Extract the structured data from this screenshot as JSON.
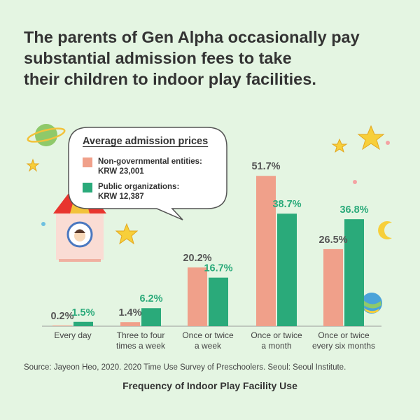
{
  "title_lines": [
    "The parents of Gen Alpha occasionally pay",
    "substantial admission fees to take",
    "their children to indoor play facilities."
  ],
  "legend": {
    "title": "Average admission prices",
    "items": [
      {
        "line1": "Non-governmental entities:",
        "line2": "KRW 23,001",
        "color": "#f0a08a"
      },
      {
        "line1": "Public organizations:",
        "line2": "KRW 12,387",
        "color": "#2aaa7a"
      }
    ]
  },
  "source": "Source: Jayeon Heo, 2020. 2020 Time Use Survey of Preschoolers. Seoul: Seoul Institute.",
  "caption": "Frequency of Indoor Play Facility Use",
  "chart_data": {
    "type": "bar",
    "categories": [
      [
        "Every day"
      ],
      [
        "Three to four",
        "times a week"
      ],
      [
        "Once or twice",
        "a week"
      ],
      [
        "Once or twice",
        "a month"
      ],
      [
        "Once or twice",
        "every six months"
      ]
    ],
    "series": [
      {
        "name": "Non-governmental entities",
        "values": [
          0.2,
          1.4,
          20.2,
          51.7,
          26.5
        ],
        "labels": [
          "0.2%",
          "1.4%",
          "20.2%",
          "51.7%",
          "26.5%"
        ],
        "color": "#f0a08a",
        "label_color": "#555555"
      },
      {
        "name": "Public organizations",
        "values": [
          1.5,
          6.2,
          16.7,
          38.7,
          36.8
        ],
        "labels": [
          "1.5%",
          "6.2%",
          "16.7%",
          "38.7%",
          "36.8%"
        ],
        "color": "#2aaa7a",
        "label_color": "#2aaa7a"
      }
    ],
    "ylim": [
      0,
      52
    ]
  }
}
